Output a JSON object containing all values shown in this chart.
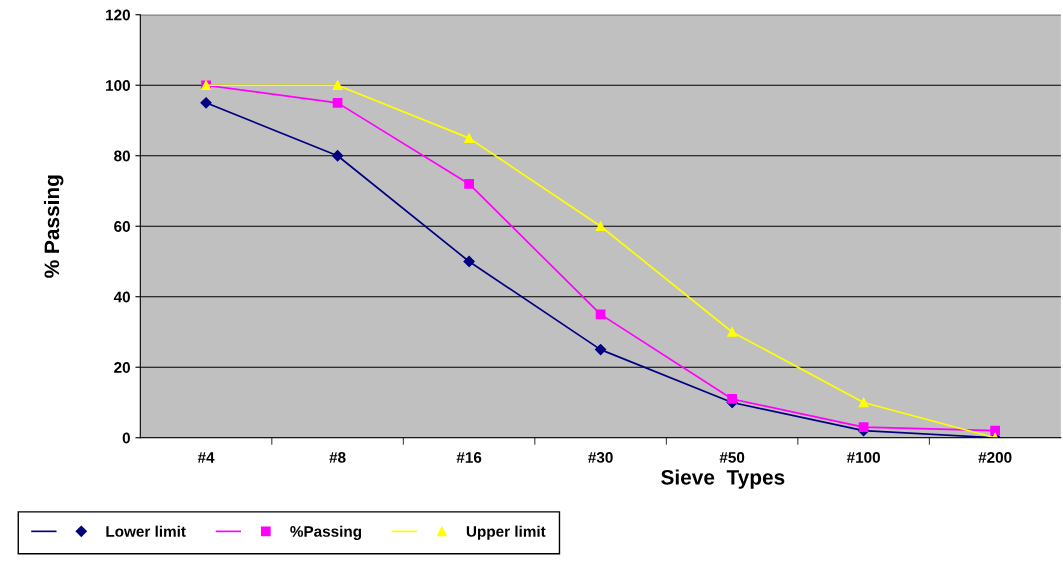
{
  "chart_data": {
    "type": "line",
    "xlabel": "Sieve  Types",
    "ylabel": "% Passing",
    "categories": [
      "#4",
      "#8",
      "#16",
      "#30",
      "#50",
      "#100",
      "#200"
    ],
    "series": [
      {
        "name": "Lower limit",
        "color": "#000080",
        "marker": "diamond",
        "values": [
          95,
          80,
          50,
          25,
          10,
          2,
          0
        ]
      },
      {
        "name": "%Passing",
        "color": "#ff00ff",
        "marker": "square",
        "values": [
          100,
          95,
          72,
          35,
          11,
          3,
          2
        ]
      },
      {
        "name": "Upper limit",
        "color": "#ffff00",
        "marker": "triangle",
        "values": [
          100,
          100,
          85,
          60,
          30,
          10,
          0
        ]
      }
    ],
    "ylim": [
      0,
      120
    ],
    "yticks": [
      0,
      20,
      40,
      60,
      80,
      100,
      120
    ],
    "grid": "y",
    "legend": "bottom left",
    "line_style": "solid"
  }
}
